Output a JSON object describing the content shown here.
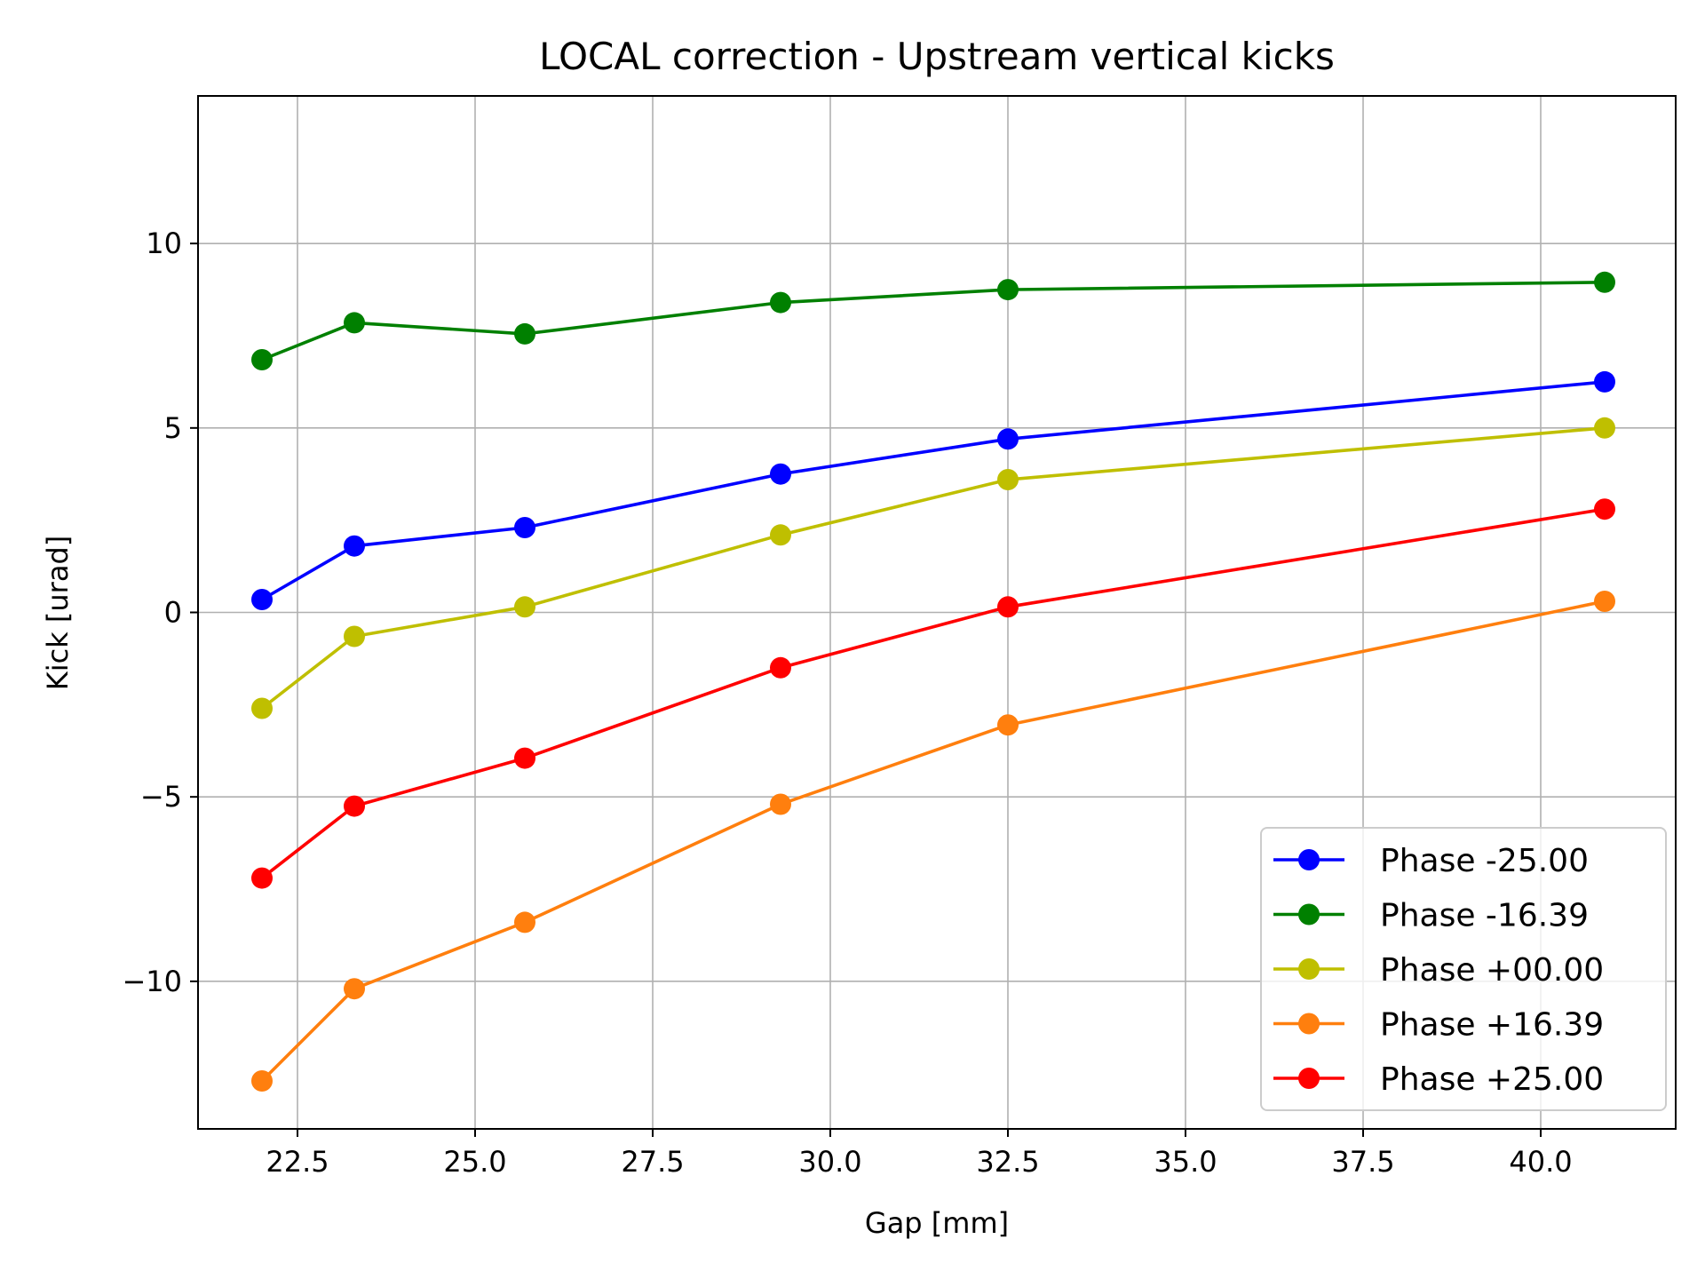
{
  "chart_data": {
    "type": "line",
    "title": "LOCAL correction - Upstream vertical kicks",
    "xlabel": "Gap [mm]",
    "ylabel": "Kick [urad]",
    "xlim": [
      21.1,
      41.9
    ],
    "ylim": [
      -14,
      14
    ],
    "xticks": [
      22.5,
      25.0,
      27.5,
      30.0,
      32.5,
      35.0,
      37.5,
      40.0
    ],
    "xtick_labels": [
      "22.5",
      "25.0",
      "27.5",
      "30.0",
      "32.5",
      "35.0",
      "37.5",
      "40.0"
    ],
    "yticks": [
      -10,
      -5,
      0,
      5,
      10
    ],
    "ytick_labels": [
      "−10",
      "−5",
      "0",
      "5",
      "10"
    ],
    "grid": true,
    "legend_position": "lower-right",
    "x": [
      22.0,
      23.3,
      25.7,
      29.3,
      32.5,
      40.9
    ],
    "series": [
      {
        "name": "Phase -25.00",
        "color": "#0000ff",
        "values": [
          0.35,
          1.8,
          2.3,
          3.75,
          4.7,
          6.25
        ]
      },
      {
        "name": "Phase -16.39",
        "color": "#008000",
        "values": [
          6.85,
          7.85,
          7.55,
          8.4,
          8.75,
          8.95
        ]
      },
      {
        "name": "Phase +00.00",
        "color": "#bfbf00",
        "values": [
          -2.6,
          -0.65,
          0.15,
          2.1,
          3.6,
          5.0
        ]
      },
      {
        "name": "Phase +16.39",
        "color": "#ff7f0e",
        "values": [
          -12.7,
          -10.2,
          -8.4,
          -5.2,
          -3.05,
          0.3
        ]
      },
      {
        "name": "Phase +25.00",
        "color": "#ff0000",
        "values": [
          -7.2,
          -5.25,
          -3.95,
          -1.5,
          0.15,
          2.8
        ]
      }
    ]
  }
}
